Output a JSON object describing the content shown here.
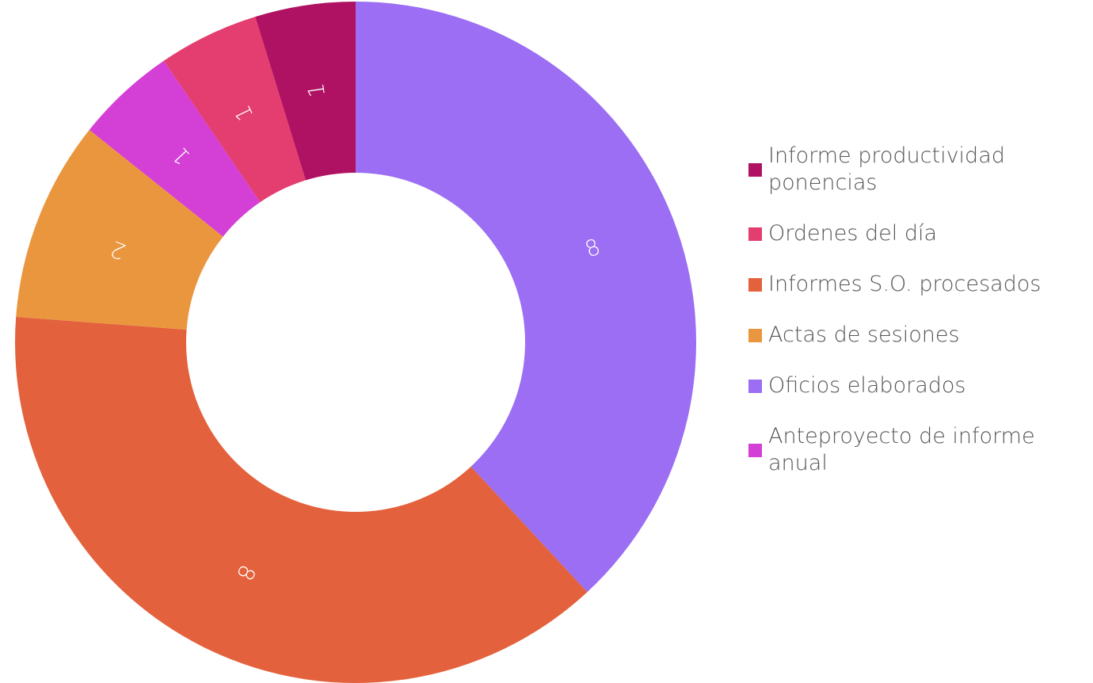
{
  "chart_data": {
    "type": "donut",
    "categories": [
      "Informe productividad ponencias",
      "Ordenes del día",
      "Informes S.O. procesados",
      "Actas de sesiones",
      "Oficios elaborados",
      "Anteproyecto de informe anual"
    ],
    "values": [
      1,
      1,
      8,
      2,
      8,
      1
    ],
    "colors": [
      "#b01263",
      "#e33e6f",
      "#e3613c",
      "#ea963e",
      "#9b6ef3",
      "#d43fd6"
    ],
    "slice_order": [
      4,
      2,
      3,
      5,
      1,
      0
    ],
    "legend": "right"
  }
}
